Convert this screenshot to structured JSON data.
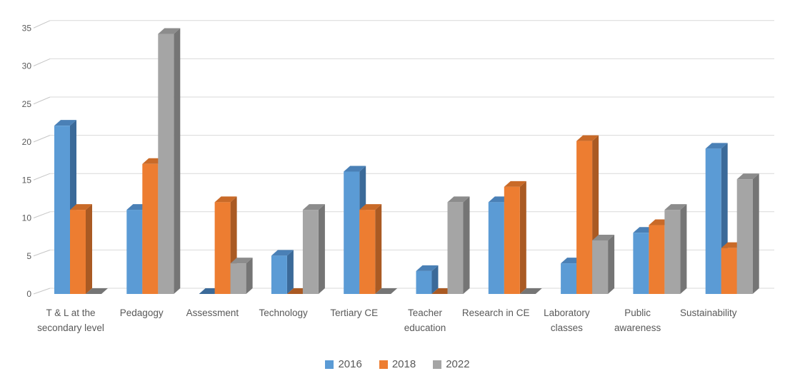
{
  "chart_data": {
    "type": "bar",
    "variant": "3d-clustered-column",
    "title": "",
    "categories": [
      "T & L at the secondary level",
      "Pedagogy",
      "Assessment",
      "Technology",
      "Tertiary CE",
      "Teacher education",
      "Research in CE",
      "Laboratory classes",
      "Public awareness",
      "Sustainability"
    ],
    "series": [
      {
        "name": "2016",
        "color": "#5B9BD5",
        "color_top": "#4A80B6",
        "color_side": "#3B6A99",
        "values": [
          22,
          11,
          0,
          5,
          16,
          3,
          12,
          4,
          8,
          19
        ]
      },
      {
        "name": "2018",
        "color": "#ED7D31",
        "color_top": "#C96A28",
        "color_side": "#AA5A23",
        "values": [
          11,
          17,
          12,
          0,
          11,
          0,
          14,
          20,
          9,
          6
        ]
      },
      {
        "name": "2022",
        "color": "#A5A5A5",
        "color_top": "#8C8C8C",
        "color_side": "#757575",
        "values": [
          0,
          34,
          4,
          11,
          0,
          12,
          0,
          7,
          11,
          15
        ]
      }
    ],
    "ylim": [
      0,
      35
    ],
    "yticks": [
      0,
      5,
      10,
      15,
      20,
      25,
      30,
      35
    ],
    "grid": true,
    "gridline_color": "#D9D9D9",
    "tick_line_color": "#C6C6C6",
    "axis_text_color": "#595959",
    "legend_position": "bottom",
    "background": "#FFFFFF"
  }
}
